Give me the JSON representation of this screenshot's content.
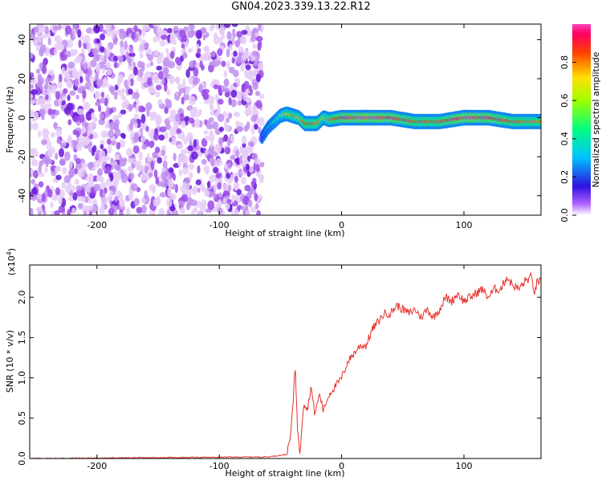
{
  "title": "GN04.2023.339.13.22.R12",
  "chart_data": [
    {
      "type": "heatmap",
      "xlabel": "Height of straight line (km)",
      "ylabel": "Frequency (Hz)",
      "xlim": [
        -255,
        163
      ],
      "ylim": [
        -50,
        48
      ],
      "xticks": [
        -200,
        -100,
        0,
        100
      ],
      "yticks": [
        -40,
        -20,
        0,
        20,
        40
      ],
      "colorbar": {
        "label": "Normalized spectral amplitude",
        "range": [
          0,
          1
        ],
        "ticks": [
          "0.0",
          "0.2",
          "0.4",
          "0.6",
          "0.8"
        ]
      },
      "noise_region": {
        "x": [
          -255,
          -65
        ],
        "freq": [
          -50,
          48
        ]
      },
      "signal_line": {
        "x": [
          -65,
          -60,
          -55,
          -50,
          -45,
          -40,
          -35,
          -30,
          -25,
          -20,
          -15,
          -10,
          0,
          20,
          40,
          60,
          80,
          100,
          120,
          140,
          163
        ],
        "freq": [
          -10,
          -5,
          -2,
          1,
          2,
          1,
          0,
          -3,
          -3,
          -3,
          0,
          -1,
          0,
          0,
          0,
          -2,
          -2,
          0,
          0,
          -2,
          -2
        ],
        "amplitude": [
          0.25,
          0.35,
          0.45,
          0.55,
          0.7,
          0.8,
          0.75,
          0.85,
          0.85,
          0.8,
          0.75,
          0.8,
          0.95,
          0.98,
          0.95,
          0.85,
          0.85,
          0.98,
          0.95,
          0.85,
          0.8
        ]
      }
    },
    {
      "type": "line",
      "xlabel": "Height of straight line (km)",
      "ylabel": "SNR (10 * v/v)",
      "yscale_label": "(x10",
      "yscale_exp": "4",
      "yscale_close": ")",
      "xlim": [
        -255,
        163
      ],
      "ylim": [
        0,
        2.4
      ],
      "xticks": [
        -200,
        -100,
        0,
        100
      ],
      "yticks": [
        "0.0",
        "0.5",
        "1.0",
        "1.5",
        "2.0"
      ],
      "color": "#e8302a",
      "series": [
        {
          "x": [
            -255,
            -60,
            -45,
            -42,
            -40,
            -38,
            -36,
            -34,
            -33,
            -31,
            -28,
            -25,
            -22,
            -18,
            -15,
            -10,
            -5,
            0,
            5,
            10,
            15,
            20,
            25,
            30,
            35,
            40,
            45,
            50,
            55,
            60,
            65,
            70,
            75,
            80,
            85,
            90,
            95,
            100,
            105,
            110,
            115,
            120,
            125,
            130,
            135,
            140,
            145,
            150,
            155,
            158,
            160,
            163
          ],
          "y": [
            0.0,
            0.02,
            0.05,
            0.25,
            0.6,
            1.2,
            0.35,
            0.05,
            0.3,
            0.7,
            0.6,
            0.9,
            0.55,
            0.8,
            0.6,
            0.8,
            0.9,
            1.0,
            1.2,
            1.3,
            1.4,
            1.4,
            1.6,
            1.7,
            1.8,
            1.8,
            1.9,
            1.85,
            1.8,
            1.85,
            1.75,
            1.85,
            1.75,
            1.85,
            2.0,
            1.95,
            2.05,
            1.95,
            2.0,
            2.05,
            2.1,
            2.0,
            2.1,
            2.1,
            2.25,
            2.15,
            2.1,
            2.2,
            2.25,
            2.05,
            2.2,
            2.2
          ]
        }
      ]
    }
  ]
}
